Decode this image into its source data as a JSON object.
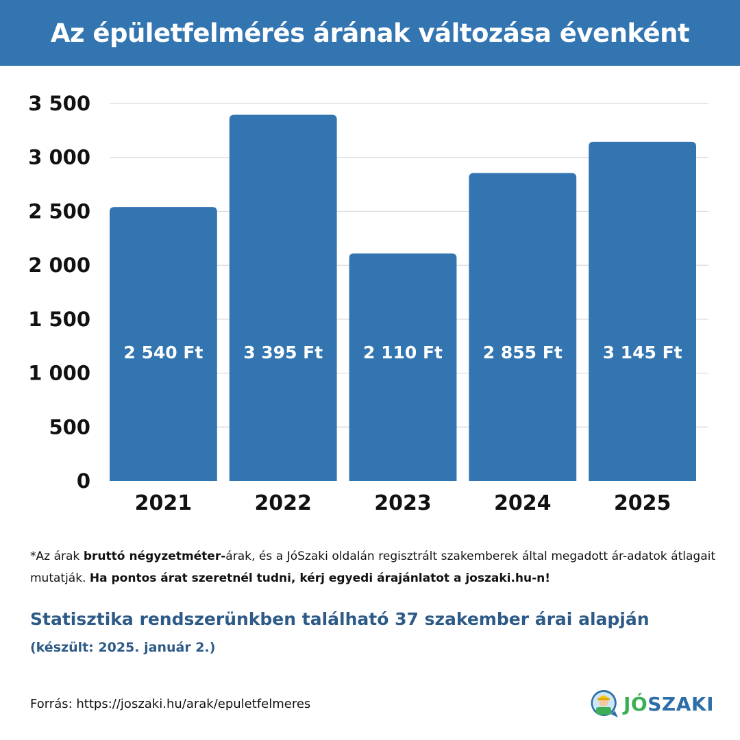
{
  "header": {
    "title": "Az épületfelmérés árának változása évenként"
  },
  "chart_data": {
    "type": "bar",
    "title": "Az épületfelmérés árának változása évenként",
    "categories": [
      "2021",
      "2022",
      "2023",
      "2024",
      "2025"
    ],
    "values": [
      2540,
      3395,
      2110,
      2855,
      3145
    ],
    "data_labels": [
      "2 540 Ft",
      "3 395 Ft",
      "2 110 Ft",
      "2 855 Ft",
      "3 145 Ft"
    ],
    "unit": "Ft",
    "ylim": [
      0,
      3500
    ],
    "yticks": [
      0,
      500,
      1000,
      1500,
      2000,
      2500,
      3000,
      3500
    ],
    "ytick_labels": [
      "0",
      "500",
      "1 000",
      "1 500",
      "2 000",
      "2 500",
      "3 000",
      "3 500"
    ],
    "grid": true,
    "legend": "none",
    "bar_color": "#3275b1"
  },
  "note": {
    "p1": "*Az árak ",
    "b1": "bruttó négyzetméter-",
    "p2": "árak, és a JóSzaki oldalán regisztrált szakemberek által megadott ár-adatok átlagait mutatják. ",
    "b2": "Ha pontos árat szeretnél tudni, kérj egyedi árajánlatot a joszaki.hu-n!"
  },
  "stats": {
    "main": "Statisztika rendszerünkben található 37 szakember árai alapján",
    "sub": "(készült: 2025. január 2.)"
  },
  "source": {
    "text": "Forrás: https://joszaki.hu/arak/epuletfelmeres"
  },
  "logo": {
    "part1": "JÓ",
    "part2": "SZAKI",
    "icon": "joszaki-mascot-icon"
  },
  "colors": {
    "header_bg": "#3275b1",
    "bar": "#3275b1",
    "stat_text": "#2d5a86",
    "logo_green": "#3cae55",
    "logo_blue": "#2d6ea8"
  }
}
